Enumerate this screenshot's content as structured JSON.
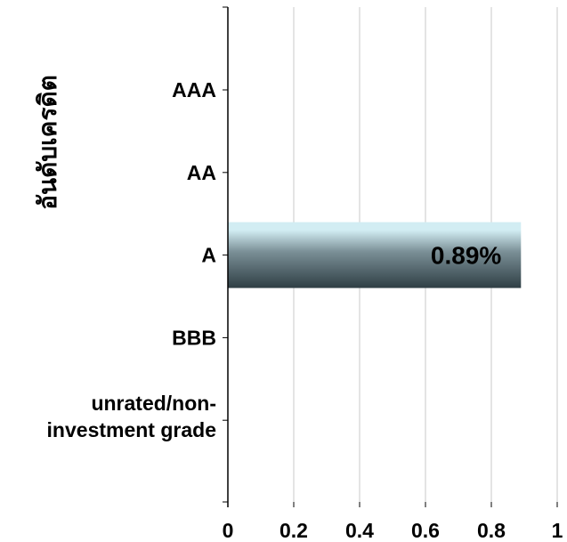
{
  "chart_data": {
    "type": "bar",
    "orientation": "horizontal",
    "categories": [
      "AAA",
      "AA",
      "A",
      "BBB",
      "unrated/non-investment grade"
    ],
    "category_label_lines": [
      [
        "AAA"
      ],
      [
        "AA"
      ],
      [
        "A"
      ],
      [
        "BBB"
      ],
      [
        "unrated/non-",
        "investment grade"
      ]
    ],
    "values": [
      0,
      0,
      0.89,
      0,
      0
    ],
    "data_labels": [
      "",
      "",
      "0.89%",
      "",
      ""
    ],
    "x_ticks": [
      "0",
      "0.2",
      "0.4",
      "0.6",
      "0.8",
      "1"
    ],
    "xlim": [
      0,
      1
    ],
    "xlabel": "",
    "ylabel": "อันดับเครดิต",
    "grid": true,
    "legend": "none",
    "colors": {
      "bar_top": "#d2edf3",
      "bar_mid": "#7a8f96",
      "bar_bottom": "#2f3f45",
      "grid": "#c8c8c8",
      "axis": "#000000"
    }
  }
}
